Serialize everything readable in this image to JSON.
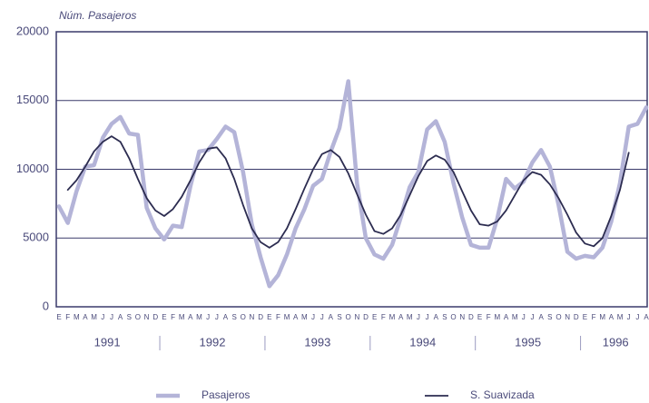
{
  "chart_data": {
    "type": "line",
    "y_label": "Núm. Pasajeros",
    "categories": [
      "E",
      "F",
      "M",
      "A",
      "M",
      "J",
      "J",
      "A",
      "S",
      "O",
      "N",
      "D",
      "E",
      "F",
      "M",
      "A",
      "M",
      "J",
      "J",
      "A",
      "S",
      "O",
      "N",
      "D",
      "E",
      "F",
      "M",
      "A",
      "M",
      "J",
      "J",
      "A",
      "S",
      "O",
      "N",
      "D",
      "E",
      "F",
      "M",
      "A",
      "M",
      "J",
      "J",
      "A",
      "S",
      "O",
      "N",
      "D",
      "E",
      "F",
      "M",
      "A",
      "M",
      "J",
      "J",
      "A",
      "S",
      "O",
      "N",
      "D",
      "E",
      "F",
      "M",
      "A",
      "M",
      "J",
      "J",
      "A"
    ],
    "year_labels": [
      "1991",
      "1992",
      "1993",
      "1994",
      "1995",
      "1996"
    ],
    "series": [
      {
        "name": "Pasajeros",
        "color": "#b4b4d8",
        "values": [
          7300,
          6100,
          8400,
          10200,
          10300,
          12300,
          13300,
          13800,
          12600,
          12500,
          7200,
          5700,
          4900,
          5900,
          5800,
          8800,
          11300,
          11400,
          12200,
          13100,
          12700,
          9800,
          6000,
          3600,
          1500,
          2300,
          3800,
          5700,
          7100,
          8800,
          9300,
          11300,
          13000,
          16400,
          9000,
          5000,
          3800,
          3500,
          4500,
          6500,
          8700,
          9800,
          12900,
          13500,
          12000,
          9000,
          6500,
          4500,
          4300,
          4300,
          6400,
          9300,
          8600,
          9100,
          10500,
          11400,
          10200,
          7400,
          4000,
          3500,
          3700,
          3600,
          4300,
          6200,
          9000,
          13100,
          13300,
          14500
        ]
      },
      {
        "name": "S. Suavizada",
        "color": "#2c2c50",
        "values": [
          null,
          8500,
          9200,
          10200,
          11300,
          12000,
          12400,
          12000,
          10800,
          9300,
          7900,
          7000,
          6600,
          7100,
          8000,
          9200,
          10500,
          11500,
          11600,
          10800,
          9300,
          7400,
          5700,
          4700,
          4300,
          4700,
          5700,
          7100,
          8600,
          10000,
          11100,
          11400,
          10900,
          9700,
          8200,
          6700,
          5500,
          5300,
          5700,
          6700,
          8100,
          9500,
          10600,
          11000,
          10700,
          9800,
          8400,
          7000,
          6000,
          5900,
          6200,
          7000,
          8100,
          9200,
          9800,
          9600,
          8900,
          7900,
          6700,
          5400,
          4600,
          4400,
          5000,
          6600,
          8500,
          11200,
          null,
          null
        ]
      }
    ],
    "ylim": [
      0,
      20000
    ],
    "yticks": [
      0,
      5000,
      10000,
      15000,
      20000
    ],
    "grid": true,
    "legend": "bottom"
  }
}
